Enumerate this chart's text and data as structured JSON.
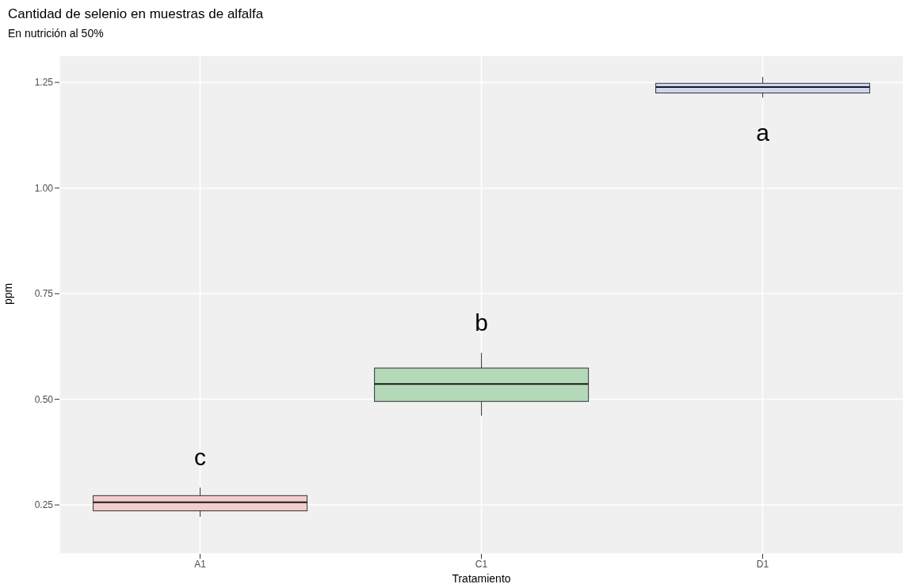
{
  "chart_data": {
    "type": "box",
    "title": "Cantidad de selenio en muestras de alfalfa",
    "subtitle": "En nutrición al 50%",
    "xlabel": "Tratamiento",
    "ylabel": "ppm",
    "categories": [
      "A1",
      "C1",
      "D1"
    ],
    "colors": [
      "#f4cccc",
      "#b3d9b8",
      "#ccd6ee"
    ],
    "boxes": [
      {
        "low": 0.222,
        "q1": 0.236,
        "median": 0.256,
        "q3": 0.272,
        "high": 0.291
      },
      {
        "low": 0.461,
        "q1": 0.495,
        "median": 0.536,
        "q3": 0.574,
        "high": 0.61
      },
      {
        "low": 1.214,
        "q1": 1.225,
        "median": 1.239,
        "q3": 1.248,
        "high": 1.263
      }
    ],
    "ylim": [
      0.134,
      1.314
    ],
    "yticks": [
      {
        "value": 0.25,
        "label": "0.25"
      },
      {
        "value": 0.5,
        "label": "0.50"
      },
      {
        "value": 0.75,
        "label": "0.75"
      },
      {
        "value": 1,
        "label": "1.00"
      },
      {
        "value": 1.25,
        "label": "1.25"
      }
    ],
    "grid": true,
    "annotations": [
      "c",
      "b",
      "a"
    ]
  }
}
